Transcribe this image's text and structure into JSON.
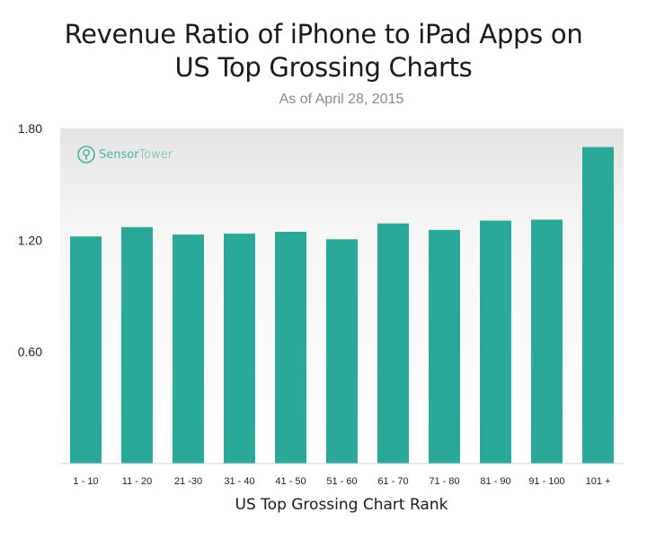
{
  "chart_data": {
    "type": "bar",
    "title_lines": [
      "Revenue Ratio of iPhone to iPad Apps on",
      "US Top Grossing Charts"
    ],
    "subtitle": "As of April 28, 2015",
    "xlabel": "US Top Grossing Chart Rank",
    "ylabel": "",
    "categories": [
      "1 - 10",
      "11 - 20",
      "21 -30",
      "31 - 40",
      "41 - 50",
      "51 - 60",
      "61 - 70",
      "71 - 80",
      "81 - 90",
      "91 - 100",
      "101 +"
    ],
    "values": [
      1.22,
      1.27,
      1.23,
      1.235,
      1.245,
      1.205,
      1.29,
      1.255,
      1.305,
      1.31,
      1.7
    ],
    "ylim": [
      0,
      1.8
    ],
    "yticks": [
      "0.60",
      "1.20",
      "1.80"
    ],
    "ytick_values": [
      0.6,
      1.2,
      1.8
    ],
    "bar_color": "#2aa898",
    "grid": false
  },
  "watermark": {
    "brand_first": "Sensor",
    "brand_second": "Tower",
    "color": "#46b3a3"
  }
}
